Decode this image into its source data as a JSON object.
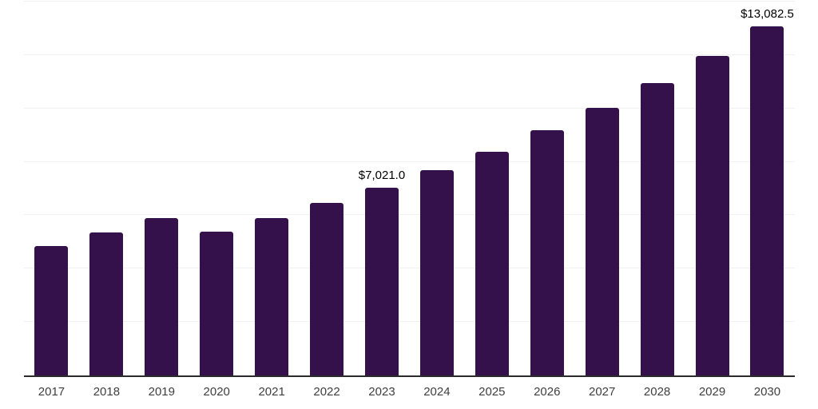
{
  "chart_data": {
    "type": "bar",
    "title": "",
    "xlabel": "",
    "ylabel": "",
    "categories": [
      "2017",
      "2018",
      "2019",
      "2020",
      "2021",
      "2022",
      "2023",
      "2024",
      "2025",
      "2026",
      "2027",
      "2028",
      "2029",
      "2030"
    ],
    "values": [
      4850,
      5350,
      5900,
      5400,
      5890,
      6460,
      7021.0,
      7680,
      8390,
      9170,
      10020,
      10950,
      11970,
      13082.5
    ],
    "data_labels": [
      "",
      "",
      "",
      "",
      "",
      "",
      "$7,021.0",
      "",
      "",
      "",
      "",
      "",
      "",
      "$13,082.5"
    ],
    "ylim": [
      0,
      14000
    ],
    "grid_step": 2000,
    "grid": true,
    "legend": false,
    "y_axis_labels_visible": false,
    "bar_color": "#35114B",
    "axis_line_color": "#2b2b2b",
    "gridline_color": "#f1f1f2",
    "tick_label_color": "#3f3f3f",
    "data_label_color": "#000000"
  }
}
